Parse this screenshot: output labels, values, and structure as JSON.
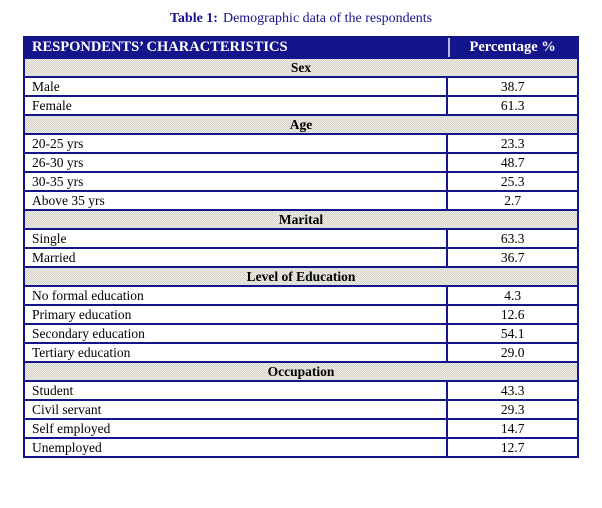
{
  "caption": {
    "label": "Table 1:",
    "text": "Demographic data of the respondents"
  },
  "table": {
    "header": {
      "characteristics": "RESPONDENTS’ CHARACTERISTICS",
      "percentage": "Percentage %"
    },
    "sections": [
      {
        "name": "Sex",
        "rows": [
          [
            "Male",
            "38.7"
          ],
          [
            "Female",
            "61.3"
          ]
        ]
      },
      {
        "name": "Age",
        "rows": [
          [
            "20-25 yrs",
            "23.3"
          ],
          [
            "26-30 yrs",
            "48.7"
          ],
          [
            "30-35 yrs",
            "25.3"
          ],
          [
            "Above 35 yrs",
            "2.7"
          ]
        ]
      },
      {
        "name": "Marital",
        "rows": [
          [
            "Single",
            "63.3"
          ],
          [
            "Married",
            "36.7"
          ]
        ]
      },
      {
        "name": "Level of Education",
        "rows": [
          [
            "No formal education",
            "4.3"
          ],
          [
            "Primary education",
            "12.6"
          ],
          [
            "Secondary education",
            "54.1"
          ],
          [
            "Tertiary education",
            "29.0"
          ]
        ]
      },
      {
        "name": "Occupation",
        "rows": [
          [
            "Student",
            "43.3"
          ],
          [
            "Civil servant",
            "29.3"
          ],
          [
            "Self employed",
            "14.7"
          ],
          [
            "Unemployed",
            "12.7"
          ]
        ]
      }
    ]
  },
  "colors": {
    "navy": "#14148C",
    "section_bg": "#E2DFD7",
    "header_text": "#FFFFFF"
  }
}
